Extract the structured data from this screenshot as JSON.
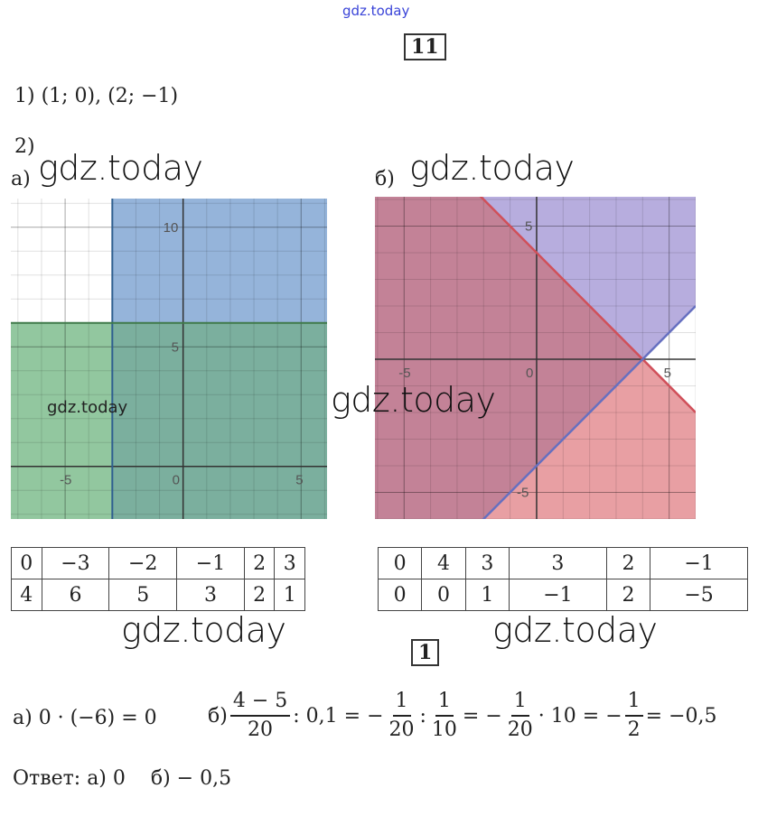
{
  "header_watermark": "gdz.today",
  "task11": {
    "number": "11",
    "part1": "1) (1; 0), (2; −1)",
    "part2": "2)",
    "label_a": "а)",
    "label_b": "б)",
    "watermarks": [
      "gdz.today",
      "gdz.today",
      "gdz.today",
      "gdz.today",
      "gdz.today",
      "gdz.today"
    ]
  },
  "chart_data": [
    {
      "type": "area",
      "title": "",
      "xlim": [
        -7.3,
        6.1
      ],
      "ylim": [
        -2.2,
        11.2
      ],
      "grid": true,
      "x_ticks": [
        "-5",
        "0",
        "5"
      ],
      "y_ticks": [
        "5",
        "10"
      ],
      "regions": [
        {
          "inequality": "x ≥ -3",
          "color": "#8fb0d8"
        },
        {
          "inequality": "y ≤ 6",
          "color": "#8cc49a"
        }
      ],
      "boundaries": [
        {
          "x": -3
        },
        {
          "y": 6
        }
      ],
      "colors": {
        "overlap": "#7aae9e"
      }
    },
    {
      "type": "area",
      "title": "",
      "xlim": [
        -6.1,
        6
      ],
      "ylim": [
        -6,
        6.1
      ],
      "grid": true,
      "x_ticks": [
        "-5",
        "0",
        "5"
      ],
      "y_ticks": [
        "5",
        "-5"
      ],
      "regions": [
        {
          "inequality": "y ≤ -x + 4",
          "color": "#e79a9e"
        },
        {
          "inequality": "y ≥ x - 4",
          "color": "#b3a9dc"
        }
      ],
      "boundaries": [
        {
          "slope": -1,
          "intercept": 4,
          "color": "#d0505a"
        },
        {
          "slope": 1,
          "intercept": -4,
          "color": "#6670c0"
        }
      ],
      "colors": {
        "overlap": "#c47f93"
      }
    }
  ],
  "table_a": [
    [
      "0",
      "−3",
      "−2",
      "−1",
      "2",
      "3"
    ],
    [
      "4",
      "6",
      "5",
      "3",
      "2",
      "1"
    ]
  ],
  "table_b": [
    [
      "0",
      "4",
      "3",
      "3",
      "2",
      "−1"
    ],
    [
      "0",
      "0",
      "1",
      "−1",
      "2",
      "−5"
    ]
  ],
  "task1": {
    "number": "1",
    "a_expr": "а) 0 · (−6) = 0",
    "b_label": "б)",
    "f1_num": "4 − 5",
    "f1_den": "20",
    "s1": ": 0,1 = −",
    "f2_num": "1",
    "f2_den": "20",
    "s2": ":",
    "f3_num": "1",
    "f3_den": "10",
    "s3": "= −",
    "f4_num": "1",
    "f4_den": "20",
    "s4": "· 10 = −",
    "f5_num": "1",
    "f5_den": "2",
    "s5": "= −0,5",
    "answer": "Ответ: а) 0    б) − 0,5"
  }
}
